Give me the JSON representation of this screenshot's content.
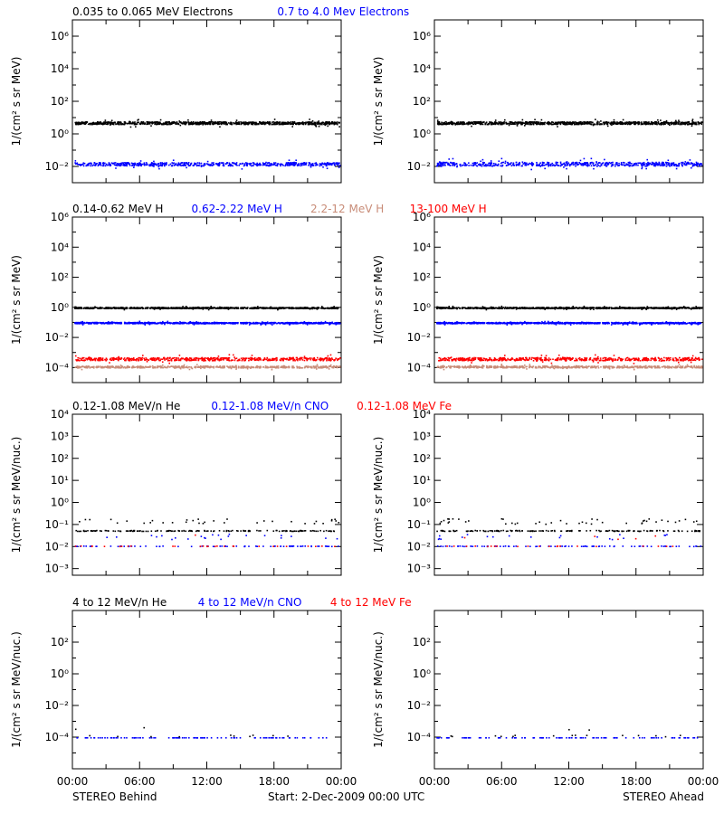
{
  "footer": {
    "left": "STEREO Behind",
    "center": "Start:  2-Dec-2009 00:00 UTC",
    "right": "STEREO Ahead"
  },
  "x_ticks": [
    "00:00",
    "06:00",
    "12:00",
    "18:00",
    "00:00"
  ],
  "colors": {
    "black": "#000000",
    "blue": "#0000ff",
    "tan": "#c88c78",
    "red": "#ff0000"
  },
  "chart_data": [
    {
      "type": "scatter",
      "ylabel": "1/(cm² s sr MeV)",
      "yscale": "log",
      "ylim": [
        0.001,
        10000000
      ],
      "ytick_exps": [
        -2,
        0,
        2,
        4,
        6
      ],
      "legend": [
        {
          "text": "0.035 to 0.065 MeV Electrons",
          "color": "#000000"
        },
        {
          "text": "0.7 to 4.0 Mev Electrons",
          "color": "#0000ff"
        }
      ],
      "series": [
        {
          "color": "#000000",
          "level": 5,
          "spread": 0.08,
          "density": 3
        },
        {
          "color": "#0000ff",
          "level": 0.015,
          "spread": 0.1,
          "density": 2
        }
      ]
    },
    {
      "type": "scatter",
      "ylabel": "1/(cm² s sr MeV)",
      "yscale": "log",
      "ylim": [
        0.001,
        10000000
      ],
      "ytick_exps": [
        -2,
        0,
        2,
        4,
        6
      ],
      "legend": [],
      "series": [
        {
          "color": "#000000",
          "level": 5,
          "spread": 0.08,
          "density": 3
        },
        {
          "color": "#0000ff",
          "level": 0.015,
          "spread": 0.12,
          "density": 2
        }
      ]
    },
    {
      "type": "scatter",
      "ylabel": "1/(cm² s sr MeV)",
      "yscale": "log",
      "ylim": [
        1e-05,
        1000000
      ],
      "ytick_exps": [
        -4,
        -2,
        0,
        2,
        4,
        6
      ],
      "legend": [
        {
          "text": "0.14-0.62 MeV H",
          "color": "#000000"
        },
        {
          "text": "0.62-2.22 MeV H",
          "color": "#0000ff"
        },
        {
          "text": "2.2-12 MeV H",
          "color": "#c88c78"
        },
        {
          "text": "13-100 MeV H",
          "color": "#ff0000"
        }
      ],
      "series": [
        {
          "color": "#000000",
          "level": 1,
          "spread": 0.04,
          "density": 3
        },
        {
          "color": "#0000ff",
          "level": 0.1,
          "spread": 0.04,
          "density": 3
        },
        {
          "color": "#c88c78",
          "level": 0.00012,
          "spread": 0.06,
          "density": 2
        },
        {
          "color": "#ff0000",
          "level": 0.0004,
          "spread": 0.1,
          "density": 2
        }
      ]
    },
    {
      "type": "scatter",
      "ylabel": "1/(cm² s sr MeV)",
      "yscale": "log",
      "ylim": [
        1e-05,
        1000000
      ],
      "ytick_exps": [
        -4,
        -2,
        0,
        2,
        4,
        6
      ],
      "legend": [],
      "series": [
        {
          "color": "#000000",
          "level": 1,
          "spread": 0.04,
          "density": 3
        },
        {
          "color": "#0000ff",
          "level": 0.1,
          "spread": 0.04,
          "density": 3
        },
        {
          "color": "#c88c78",
          "level": 0.00012,
          "spread": 0.06,
          "density": 2
        },
        {
          "color": "#ff0000",
          "level": 0.0004,
          "spread": 0.1,
          "density": 2
        }
      ]
    },
    {
      "type": "scatter",
      "ylabel": "1/(cm² s sr MeV/nuc.)",
      "yscale": "log",
      "ylim": [
        0.0005,
        10000
      ],
      "ytick_exps": [
        -3,
        -2,
        -1,
        0,
        1,
        2,
        3,
        4
      ],
      "legend": [
        {
          "text": "0.12-1.08 MeV/n He",
          "color": "#000000"
        },
        {
          "text": "0.12-1.08 MeV/n CNO",
          "color": "#0000ff"
        },
        {
          "text": "0.12-1.08 MeV Fe",
          "color": "#ff0000"
        }
      ],
      "series": [
        {
          "color": "#000000",
          "level": 0.055,
          "spread": 0.02,
          "density": 2,
          "sparse": true
        },
        {
          "color": "#0000ff",
          "level": 0.011,
          "spread": 0.01,
          "density": 1,
          "sparse": true
        },
        {
          "color": "#ff0000",
          "level": 0.011,
          "spread": 0.01,
          "density": 0.3,
          "sparse": true
        }
      ]
    },
    {
      "type": "scatter",
      "ylabel": "1/(cm² s sr MeV/nuc.)",
      "yscale": "log",
      "ylim": [
        0.0005,
        10000
      ],
      "ytick_exps": [
        -3,
        -2,
        -1,
        0,
        1,
        2,
        3,
        4
      ],
      "legend": [],
      "series": [
        {
          "color": "#000000",
          "level": 0.055,
          "spread": 0.02,
          "density": 2,
          "sparse": true
        },
        {
          "color": "#0000ff",
          "level": 0.011,
          "spread": 0.01,
          "density": 1,
          "sparse": true
        },
        {
          "color": "#ff0000",
          "level": 0.011,
          "spread": 0.01,
          "density": 0.3,
          "sparse": true
        }
      ]
    },
    {
      "type": "scatter",
      "ylabel": "1/(cm² s sr MeV/nuc.)",
      "yscale": "log",
      "ylim": [
        1e-06,
        10000
      ],
      "ytick_exps": [
        -4,
        -2,
        0,
        2
      ],
      "legend": [
        {
          "text": "4 to 12 MeV/n He",
          "color": "#000000"
        },
        {
          "text": "4 to 12 MeV/n CNO",
          "color": "#0000ff"
        },
        {
          "text": "4 to 12 MeV Fe",
          "color": "#ff0000"
        }
      ],
      "series": [
        {
          "color": "#0000ff",
          "level": 0.0001,
          "spread": 0.0,
          "density": 1,
          "sparse": true
        },
        {
          "color": "#000000",
          "level": 0.00013,
          "spread": 0.05,
          "density": 0.15,
          "sparse": true
        }
      ]
    },
    {
      "type": "scatter",
      "ylabel": "1/(cm² s sr MeV/nuc.)",
      "yscale": "log",
      "ylim": [
        1e-06,
        10000
      ],
      "ytick_exps": [
        -4,
        -2,
        0,
        2
      ],
      "legend": [],
      "series": [
        {
          "color": "#0000ff",
          "level": 0.0001,
          "spread": 0.0,
          "density": 1,
          "sparse": true
        },
        {
          "color": "#000000",
          "level": 0.00013,
          "spread": 0.05,
          "density": 0.15,
          "sparse": true
        }
      ]
    }
  ]
}
